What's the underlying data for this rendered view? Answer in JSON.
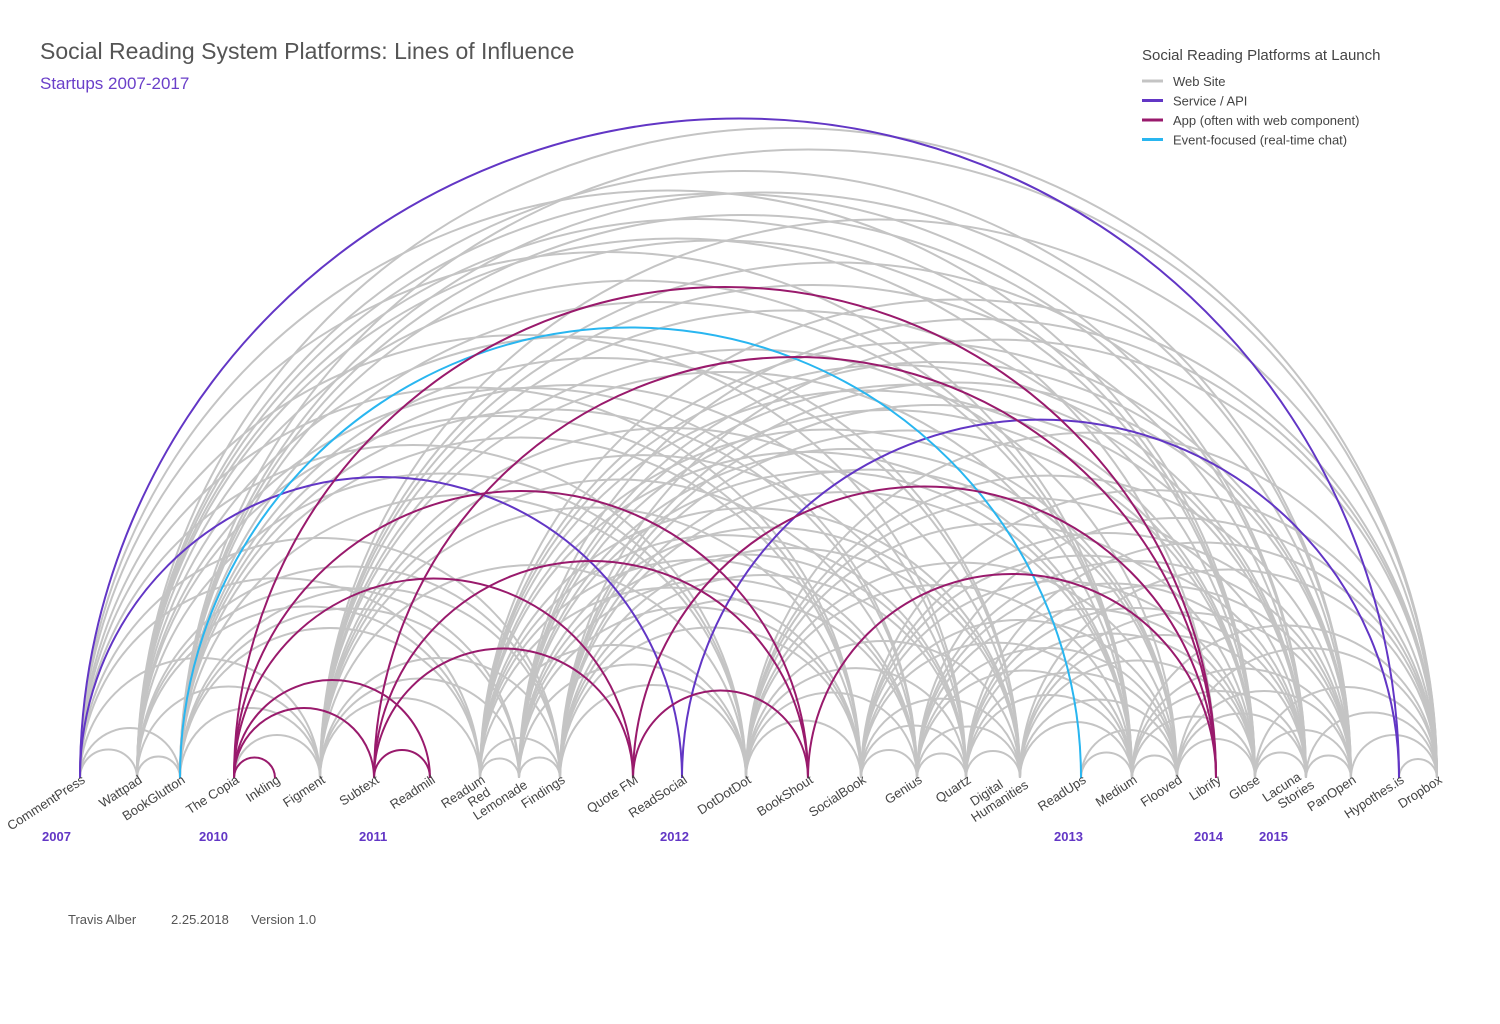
{
  "header": {
    "title": "Social Reading System Platforms: Lines of Influence",
    "subtitle": "Startups 2007-2017"
  },
  "legend": {
    "title": "Social Reading Platforms at Launch",
    "items": [
      {
        "label": "Web Site",
        "color": "#c4c4c4"
      },
      {
        "label": "Service / API",
        "color": "#6236c5"
      },
      {
        "label": "App (often with web component)",
        "color": "#991a6c"
      },
      {
        "label": "Event-focused (real-time chat)",
        "color": "#29b6f0"
      }
    ]
  },
  "chart_data": {
    "type": "arc-diagram",
    "nodes": [
      "CommentPress",
      "Wattpad",
      "BookGlutton",
      "The Copia",
      "Inkling",
      "Figment",
      "Subtext",
      "Readmill",
      "Readum",
      "Red Lemonade",
      "Findings",
      "Quote FM",
      "ReadSocial",
      "DotDotDot",
      "BookShout",
      "SocialBook",
      "Genius",
      "Quartz",
      "Digital Humanities",
      "ReadUps",
      "Medium",
      "Flooved",
      "Librify",
      "Glose",
      "Lacuna Stories",
      "PanOpen",
      "Hypothes.is",
      "Dropbox"
    ],
    "years": [
      {
        "label": "2007",
        "node": 0
      },
      {
        "label": "2010",
        "node": 2
      },
      {
        "label": "2011",
        "node": 6
      },
      {
        "label": "2012",
        "node": 12
      },
      {
        "label": "2013",
        "node": 19
      },
      {
        "label": "2014",
        "node": 22
      },
      {
        "label": "2015",
        "node": 23
      }
    ],
    "colored_edges": [
      {
        "source": 0,
        "target": 26,
        "type": "Service / API"
      },
      {
        "source": 0,
        "target": 12,
        "type": "Service / API"
      },
      {
        "source": 12,
        "target": 26,
        "type": "Service / API"
      },
      {
        "source": 2,
        "target": 19,
        "type": "Event-focused (real-time chat)"
      },
      {
        "source": 3,
        "target": 4,
        "type": "App (often with web component)"
      },
      {
        "source": 3,
        "target": 6,
        "type": "App (often with web component)"
      },
      {
        "source": 3,
        "target": 7,
        "type": "App (often with web component)"
      },
      {
        "source": 3,
        "target": 11,
        "type": "App (often with web component)"
      },
      {
        "source": 3,
        "target": 14,
        "type": "App (often with web component)"
      },
      {
        "source": 3,
        "target": 22,
        "type": "App (often with web component)"
      },
      {
        "source": 6,
        "target": 7,
        "type": "App (often with web component)"
      },
      {
        "source": 6,
        "target": 11,
        "type": "App (often with web component)"
      },
      {
        "source": 6,
        "target": 14,
        "type": "App (often with web component)"
      },
      {
        "source": 6,
        "target": 22,
        "type": "App (often with web component)"
      },
      {
        "source": 11,
        "target": 14,
        "type": "App (often with web component)"
      },
      {
        "source": 11,
        "target": 22,
        "type": "App (often with web component)"
      },
      {
        "source": 14,
        "target": 22,
        "type": "App (often with web component)"
      }
    ],
    "gray_edges_by_source": [
      [
        1,
        2,
        5,
        8,
        10,
        13,
        15,
        17,
        20,
        23
      ],
      [
        2,
        5,
        8,
        9,
        10,
        13,
        15,
        16,
        18,
        20,
        22,
        23,
        24,
        25,
        27
      ],
      [
        5,
        8,
        9,
        10,
        13,
        15,
        16,
        17,
        18,
        20,
        23,
        24,
        25,
        27
      ],
      [
        5
      ],
      [],
      [
        8,
        9,
        10,
        13,
        15,
        16,
        17,
        18,
        20,
        21,
        23,
        24,
        25,
        27
      ],
      [],
      [],
      [
        9,
        10,
        13,
        15,
        16,
        17,
        18,
        20,
        21,
        23,
        24,
        25,
        27
      ],
      [
        10,
        13,
        15,
        16,
        17,
        18,
        20,
        21,
        23,
        24,
        25,
        27
      ],
      [
        13,
        15,
        16,
        17,
        18,
        20,
        21,
        23,
        24,
        25,
        27
      ],
      [],
      [],
      [
        15,
        16,
        17,
        18,
        20,
        21,
        23,
        24,
        25,
        27
      ],
      [],
      [
        16,
        17,
        18,
        20,
        21,
        23,
        24,
        25,
        27
      ],
      [
        17,
        18,
        20,
        21,
        23,
        24,
        25,
        27
      ],
      [
        18,
        20,
        21,
        23,
        24,
        25,
        27
      ],
      [
        20,
        21,
        23,
        24,
        25,
        27
      ],
      [
        20,
        21
      ],
      [
        21,
        23,
        24,
        25,
        27
      ],
      [
        23,
        24,
        25,
        27
      ],
      [],
      [
        24,
        25,
        27
      ],
      [
        25,
        27
      ],
      [
        27
      ],
      [
        27
      ],
      []
    ]
  },
  "footer": {
    "author": "Travis Alber",
    "date": "2.25.2018",
    "version": "Version 1.0"
  }
}
